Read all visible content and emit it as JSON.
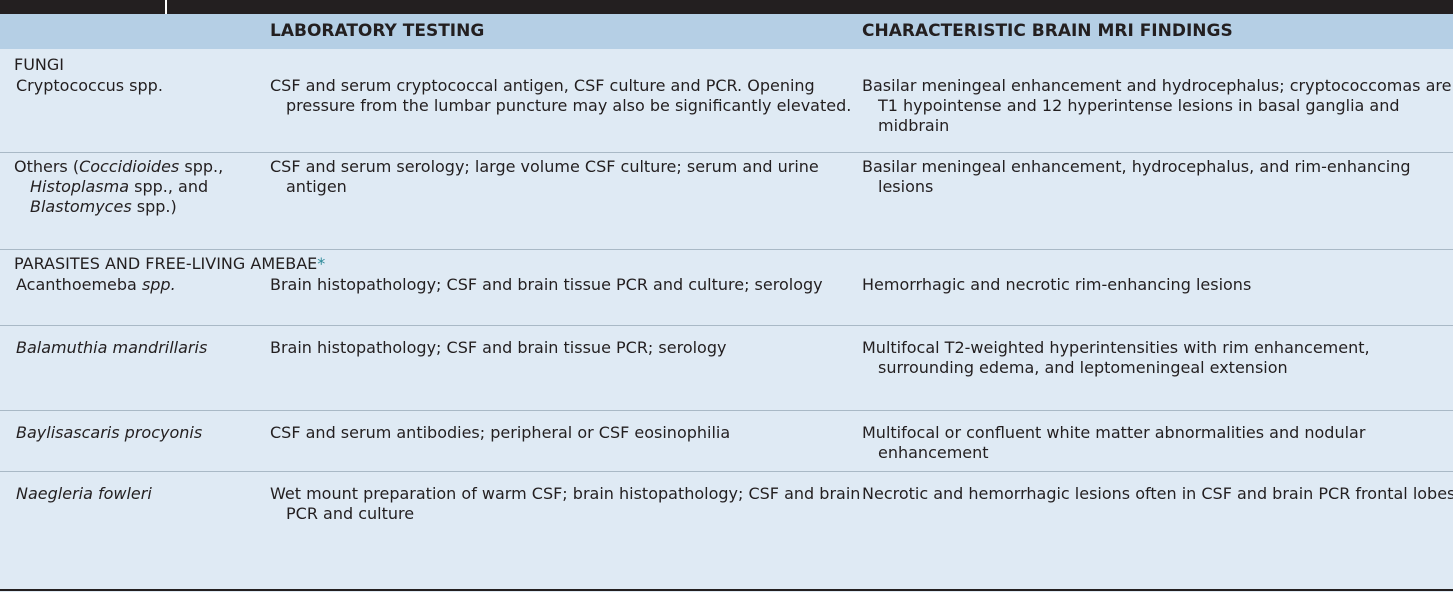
{
  "header": {
    "col2": "LABORATORY TESTING",
    "col3": "CHARACTERISTIC BRAIN MRI FINDINGS"
  },
  "sections": {
    "fungi": "FUNGI",
    "parasites": "PARASITES AND FREE-LIVING AMEBAE",
    "parasites_marker": "*"
  },
  "rows": {
    "cryptococcus": {
      "organism": "Cryptococcus spp.",
      "lab": "CSF and serum cryptococcal antigen, CSF culture and PCR. Opening pressure from the lumbar puncture may also be significantly elevated.",
      "mri": "Basilar meningeal enhancement and hydrocephalus; cryptococcomas are T1 hypointense and 12 hyperintense lesions in basal ganglia and midbrain"
    },
    "others": {
      "organism_a": "Others (",
      "organism_b": "Coccidioides",
      "organism_c": " spp., ",
      "organism_d": "Histoplasma",
      "organism_e": " spp., and ",
      "organism_f": "Blastomyces",
      "organism_g": " spp.)",
      "lab": "CSF and serum serology; large volume CSF culture; serum and urine antigen",
      "mri": "Basilar meningeal enhancement, hydrocephalus, and rim-enhancing lesions"
    },
    "acanthoemeba": {
      "organism_a": "Acanthoemeba ",
      "organism_b": "spp.",
      "lab": "Brain histopathology; CSF and brain tissue PCR and culture; serology",
      "mri": "Hemorrhagic and necrotic rim-enhancing lesions"
    },
    "balamuthia": {
      "organism": "Balamuthia mandrillaris",
      "lab": "Brain histopathology; CSF and brain tissue PCR; serology",
      "mri": "Multifocal T2-weighted hyperintensities with rim enhancement, surrounding edema, and leptomeningeal extension"
    },
    "baylisascaris": {
      "organism": "Baylisascaris procyonis",
      "lab": "CSF and serum antibodies; peripheral or CSF eosinophilia",
      "mri": "Multifocal or confluent white matter abnormalities and nodular enhancement"
    },
    "naegleria": {
      "organism": "Naegleria fowleri",
      "lab": "Wet mount preparation of warm CSF; brain histopathology; CSF and brain PCR and culture",
      "mri": "Necrotic and hemorrhagic lesions often in CSF and brain PCR frontal lobes"
    }
  }
}
